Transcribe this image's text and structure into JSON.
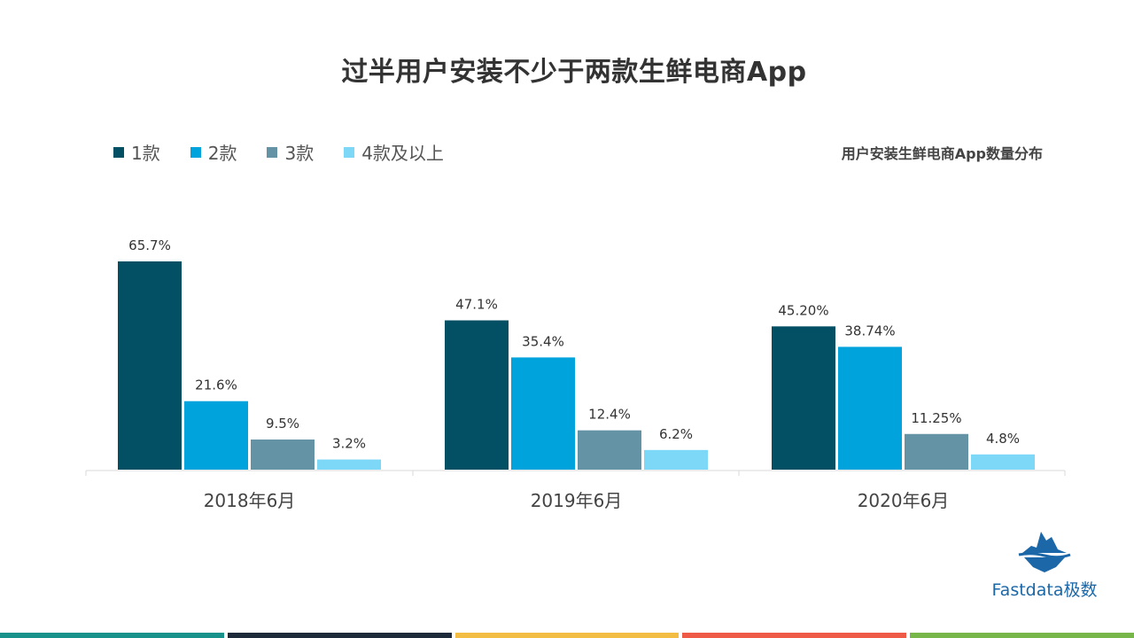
{
  "title": "过半用户安装不少于两款生鲜电商App",
  "subtitle": "用户安装生鲜电商App数量分布",
  "colors": {
    "series_1": "#034f63",
    "series_2": "#00a3dc",
    "series_3": "#6593a6",
    "series_4": "#7dd8f7",
    "axis": "#d9d9d9",
    "label": "#333333"
  },
  "logo": {
    "text": "Fastdata极数",
    "icon": "iceberg-icon"
  },
  "bottom_strip_colors": [
    "#17928a",
    "#1d2a3a",
    "#f2bd42",
    "#ef5a47",
    "#77b74a"
  ],
  "chart_data": {
    "type": "bar",
    "title": "过半用户安装不少于两款生鲜电商App",
    "categories": [
      "2018年6月",
      "2019年6月",
      "2020年6月"
    ],
    "ylim": [
      0,
      70
    ],
    "grid": false,
    "legend_position": "top-left",
    "series": [
      {
        "name": "1款",
        "values": [
          65.7,
          47.1,
          45.2
        ],
        "labels": [
          "65.7%",
          "47.1%",
          "45.20%"
        ]
      },
      {
        "name": "2款",
        "values": [
          21.6,
          35.4,
          38.74
        ],
        "labels": [
          "21.6%",
          "35.4%",
          "38.74%"
        ]
      },
      {
        "name": "3款",
        "values": [
          9.5,
          12.4,
          11.25
        ],
        "labels": [
          "9.5%",
          "12.4%",
          "11.25%"
        ]
      },
      {
        "name": "4款及以上",
        "values": [
          3.2,
          6.2,
          4.8
        ],
        "labels": [
          "3.2%",
          "6.2%",
          "4.8%"
        ]
      }
    ]
  }
}
